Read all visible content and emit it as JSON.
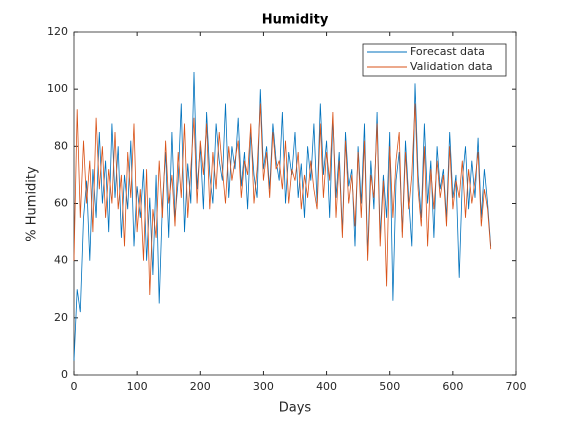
{
  "chart_data": {
    "type": "line",
    "title": "Humidity",
    "xlabel": "Days",
    "ylabel": "% Humidity",
    "x": [
      0,
      5,
      10,
      15,
      20,
      25,
      30,
      35,
      40,
      45,
      50,
      55,
      60,
      65,
      70,
      75,
      80,
      85,
      90,
      95,
      100,
      105,
      110,
      115,
      120,
      125,
      130,
      135,
      140,
      145,
      150,
      155,
      160,
      165,
      170,
      175,
      180,
      185,
      190,
      195,
      200,
      205,
      210,
      215,
      220,
      225,
      230,
      235,
      240,
      245,
      250,
      255,
      260,
      265,
      270,
      275,
      280,
      285,
      290,
      295,
      300,
      305,
      310,
      315,
      320,
      325,
      330,
      335,
      340,
      345,
      350,
      355,
      360,
      365,
      370,
      375,
      380,
      385,
      390,
      395,
      400,
      405,
      410,
      415,
      420,
      425,
      430,
      435,
      440,
      445,
      450,
      455,
      460,
      465,
      470,
      475,
      480,
      485,
      490,
      495,
      500,
      505,
      510,
      515,
      520,
      525,
      530,
      535,
      540,
      545,
      550,
      555,
      560,
      565,
      570,
      575,
      580,
      585,
      590,
      595,
      600,
      605,
      610,
      615,
      620,
      625,
      630,
      635,
      640,
      645,
      650,
      655,
      660
    ],
    "series": [
      {
        "name": "Forecast data",
        "color": "#0072bd",
        "values": [
          5,
          30,
          22,
          55,
          68,
          40,
          72,
          55,
          85,
          60,
          75,
          50,
          88,
          62,
          80,
          48,
          70,
          58,
          82,
          45,
          66,
          55,
          72,
          40,
          62,
          35,
          70,
          25,
          60,
          78,
          48,
          85,
          55,
          68,
          95,
          50,
          74,
          60,
          106,
          65,
          80,
          58,
          92,
          70,
          60,
          88,
          75,
          68,
          95,
          62,
          80,
          72,
          90,
          66,
          78,
          58,
          85,
          70,
          62,
          100,
          72,
          80,
          65,
          88,
          75,
          68,
          92,
          60,
          78,
          70,
          85,
          62,
          74,
          55,
          80,
          68,
          88,
          60,
          95,
          70,
          82,
          55,
          90,
          62,
          78,
          50,
          85,
          66,
          72,
          45,
          80,
          60,
          88,
          42,
          75,
          58,
          92,
          48,
          70,
          55,
          85,
          26,
          68,
          78,
          50,
          82,
          62,
          45,
          102,
          70,
          55,
          88,
          60,
          75,
          48,
          80,
          65,
          72,
          55,
          85,
          62,
          70,
          34,
          68,
          80,
          58,
          75,
          62,
          83,
          55,
          72,
          60,
          45
        ]
      },
      {
        "name": "Validation data",
        "color": "#d95319",
        "values": [
          40,
          93,
          55,
          82,
          60,
          75,
          50,
          90,
          65,
          80,
          55,
          72,
          60,
          85,
          58,
          70,
          45,
          78,
          62,
          88,
          50,
          65,
          40,
          72,
          28,
          58,
          48,
          75,
          55,
          82,
          60,
          70,
          52,
          78,
          62,
          88,
          55,
          72,
          90,
          60,
          82,
          70,
          88,
          58,
          78,
          65,
          85,
          72,
          60,
          80,
          68,
          75,
          82,
          62,
          75,
          70,
          88,
          60,
          72,
          95,
          68,
          78,
          62,
          85,
          72,
          75,
          65,
          82,
          60,
          72,
          68,
          78,
          58,
          70,
          62,
          75,
          65,
          58,
          88,
          62,
          78,
          68,
          92,
          55,
          75,
          48,
          82,
          60,
          70,
          52,
          78,
          55,
          82,
          40,
          70,
          62,
          88,
          45,
          68,
          31,
          80,
          55,
          75,
          85,
          48,
          78,
          58,
          70,
          95,
          65,
          52,
          80,
          45,
          72,
          58,
          75,
          62,
          70,
          52,
          80,
          58,
          68,
          62,
          75,
          55,
          72,
          60,
          68,
          78,
          52,
          65,
          58,
          44
        ]
      }
    ],
    "xlim": [
      0,
      700
    ],
    "xticks": [
      0,
      100,
      200,
      300,
      400,
      500,
      600,
      700
    ],
    "ylim": [
      0,
      120
    ],
    "yticks": [
      0,
      20,
      40,
      60,
      80,
      100,
      120
    ],
    "legend": "northeast",
    "grid": false
  }
}
